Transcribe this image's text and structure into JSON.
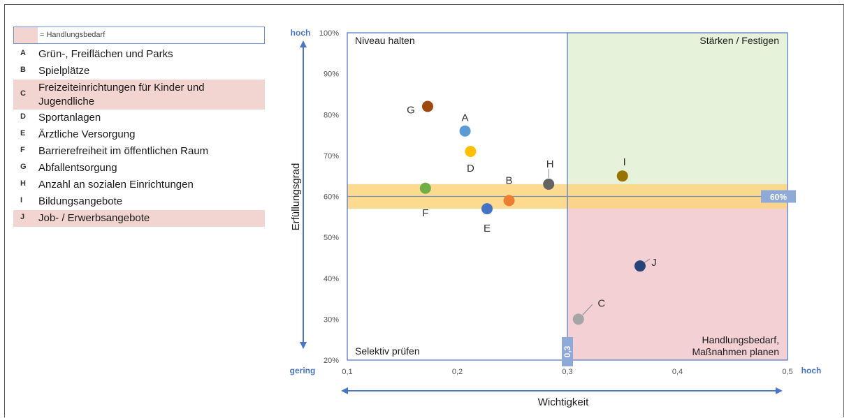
{
  "legend": {
    "key_label": "= Handlungsbedarf",
    "key_color": "#f2d4d0",
    "items": [
      {
        "letter": "A",
        "label": "Grün-, Freiflächen und Parks",
        "highlight": false
      },
      {
        "letter": "B",
        "label": "Spielplätze",
        "highlight": false
      },
      {
        "letter": "C",
        "label": "Freizeiteinrichtungen für Kinder und Jugendliche",
        "highlight": true
      },
      {
        "letter": "D",
        "label": "Sportanlagen",
        "highlight": false
      },
      {
        "letter": "E",
        "label": "Ärztliche Versorgung",
        "highlight": false
      },
      {
        "letter": "F",
        "label": "Barrierefreiheit im öffentlichen Raum",
        "highlight": false
      },
      {
        "letter": "G",
        "label": "Abfallentsorgung",
        "highlight": false
      },
      {
        "letter": "H",
        "label": "Anzahl an sozialen Einrichtungen",
        "highlight": false
      },
      {
        "letter": "I",
        "label": "Bildungsangebote",
        "highlight": false
      },
      {
        "letter": "J",
        "label": "Job- / Erwerbsangebote",
        "highlight": true
      }
    ]
  },
  "chart_data": {
    "type": "scatter",
    "xlabel": "Wichtigkeit",
    "ylabel": "Erfüllungsgrad",
    "xlim": [
      0.1,
      0.5
    ],
    "ylim": [
      20,
      100
    ],
    "x_ticks": [
      "0,1",
      "0,2",
      "0,3",
      "0,4",
      "0,5"
    ],
    "y_ticks": [
      "20%",
      "30%",
      "40%",
      "50%",
      "60%",
      "70%",
      "80%",
      "90%",
      "100%"
    ],
    "y_axis_low": "gering",
    "y_axis_high": "hoch",
    "x_axis_low": "gering",
    "x_axis_high": "hoch",
    "x_threshold": 0.3,
    "x_threshold_label": "0,3",
    "y_threshold": 60,
    "y_threshold_label": "60%",
    "y_band": [
      57,
      63
    ],
    "quadrants": {
      "top_left": "Niveau halten",
      "top_right": "Stärken / Festigen",
      "bottom_left": "Selektiv prüfen",
      "bottom_right_line1": "Handlungsbedarf,",
      "bottom_right_line2": "Maßnahmen planen"
    },
    "colors": {
      "top_right": "#e6f2d9",
      "bottom_right": "#f2d0d4",
      "band": "#fbd57e",
      "accent": "#4a76c9",
      "threshold_tag": "#8faad8"
    },
    "points": [
      {
        "label": "A",
        "x": 0.207,
        "y": 76,
        "color": "#5b9bd5"
      },
      {
        "label": "B",
        "x": 0.247,
        "y": 59,
        "color": "#ed7d31"
      },
      {
        "label": "C",
        "x": 0.31,
        "y": 30,
        "color": "#a5a5a5"
      },
      {
        "label": "D",
        "x": 0.212,
        "y": 71,
        "color": "#ffc000"
      },
      {
        "label": "E",
        "x": 0.227,
        "y": 57,
        "color": "#4472c4"
      },
      {
        "label": "F",
        "x": 0.171,
        "y": 62,
        "color": "#70ad47"
      },
      {
        "label": "G",
        "x": 0.173,
        "y": 82,
        "color": "#9e480e"
      },
      {
        "label": "H",
        "x": 0.283,
        "y": 63,
        "color": "#636363"
      },
      {
        "label": "I",
        "x": 0.35,
        "y": 65,
        "color": "#997300"
      },
      {
        "label": "J",
        "x": 0.366,
        "y": 43,
        "color": "#264478"
      }
    ]
  }
}
